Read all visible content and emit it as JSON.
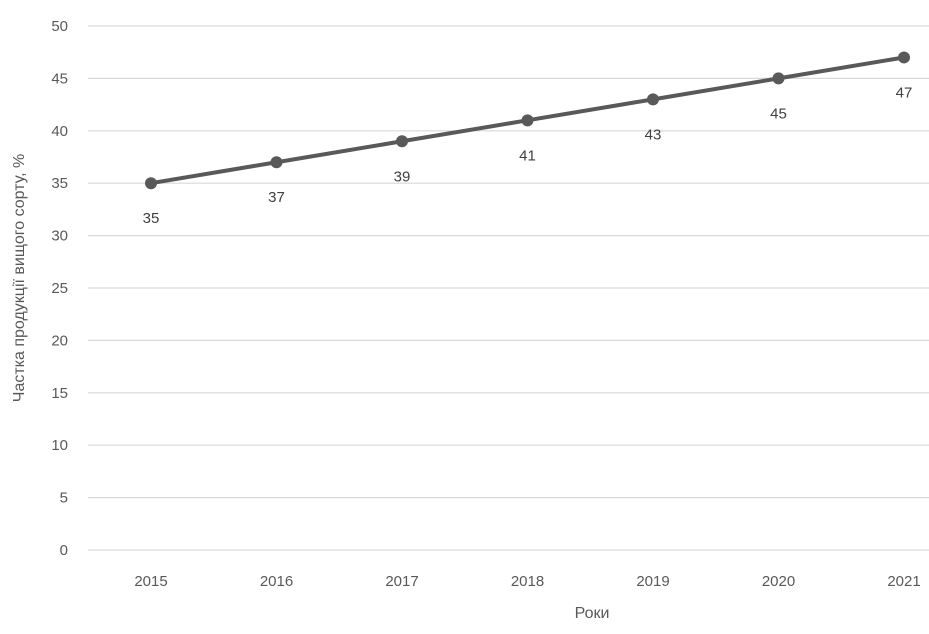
{
  "chart_data": {
    "type": "line",
    "title": "",
    "xlabel": "Роки",
    "ylabel": "Частка продукції вищого сорту, %",
    "categories": [
      "2015",
      "2016",
      "2017",
      "2018",
      "2019",
      "2020",
      "2021"
    ],
    "series": [
      {
        "values": [
          35,
          37,
          39,
          41,
          43,
          45,
          47
        ],
        "data_labels": [
          "35",
          "37",
          "39",
          "41",
          "43",
          "45",
          "47"
        ],
        "color": "#595959"
      }
    ],
    "ylim": [
      0,
      50
    ],
    "yticks": [
      "0",
      "5",
      "10",
      "15",
      "20",
      "25",
      "30",
      "35",
      "40",
      "45",
      "50"
    ],
    "grid": true,
    "legend": "none",
    "gridline_color": "#d9d9d9"
  }
}
